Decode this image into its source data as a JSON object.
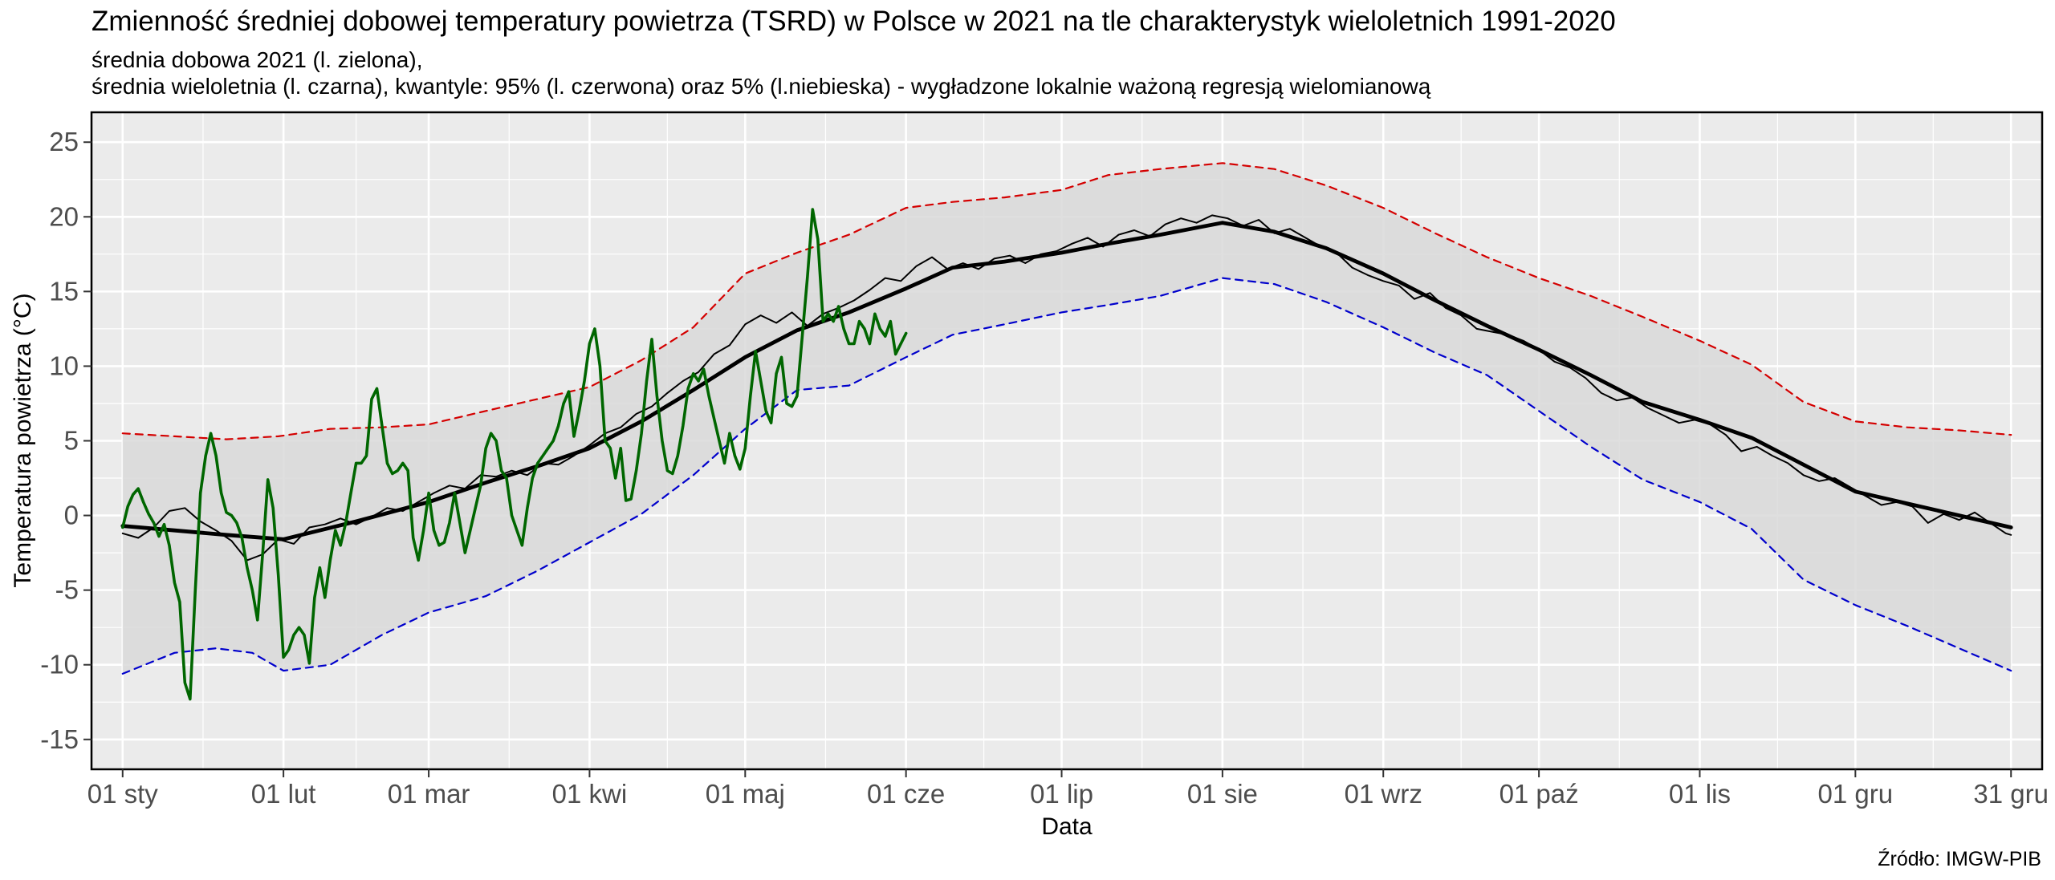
{
  "chart_data": {
    "type": "line",
    "title": "Zmienność średniej dobowej temperatury powietrza (TSRD) w Polsce w 2021 na tle charakterystyk wieloletnich 1991-2020",
    "subtitle_lines": [
      "średnia dobowa 2021 (l. zielona),",
      "średnia wieloletnia (l. czarna), kwantyle: 95% (l. czerwona) oraz 5% (l.niebieska) - wygładzone lokalnie ważoną regresją wielomianową"
    ],
    "xlabel": "Data",
    "ylabel": "Temperatura powietrza (°C)",
    "caption": "Źródło: IMGW-PIB",
    "ylim": [
      -17,
      27
    ],
    "y_ticks": [
      -15,
      -10,
      -5,
      0,
      5,
      10,
      15,
      20,
      25
    ],
    "y_tick_labels": [
      "-15",
      "-10",
      "-5",
      "0",
      "5",
      "10",
      "15",
      "20",
      "25"
    ],
    "xlim": [
      -6,
      370
    ],
    "x_tick_days": [
      0,
      31,
      59,
      90,
      120,
      151,
      181,
      212,
      243,
      273,
      304,
      334,
      364
    ],
    "x_tick_labels": [
      "01 sty",
      "01 lut",
      "01 mar",
      "01 kwi",
      "01 maj",
      "01 cze",
      "01 lip",
      "01 sie",
      "01 wrz",
      "01 paź",
      "01 lis",
      "01 gru",
      "31 gru"
    ],
    "grid": true,
    "legend": "none",
    "band": {
      "lower": "q05_smoothed",
      "upper": "q95_smoothed",
      "color": "#d9d9d9"
    },
    "series": [
      {
        "key": "q95_smoothed",
        "color": "#d40000",
        "style": "dashed",
        "x": [
          0,
          10,
          20,
          30,
          40,
          50,
          59,
          70,
          80,
          90,
          100,
          110,
          120,
          130,
          140,
          151,
          160,
          170,
          181,
          190,
          200,
          212,
          222,
          232,
          243,
          253,
          263,
          273,
          283,
          293,
          304,
          314,
          324,
          334,
          344,
          354,
          364
        ],
        "y": [
          5.5,
          5.3,
          5.1,
          5.3,
          5.8,
          5.9,
          6.1,
          7.0,
          7.8,
          8.6,
          10.4,
          12.6,
          16.2,
          17.6,
          18.8,
          20.6,
          21.0,
          21.3,
          21.8,
          22.8,
          23.2,
          23.6,
          23.2,
          22.1,
          20.6,
          18.9,
          17.3,
          15.9,
          14.7,
          13.3,
          11.7,
          10.1,
          7.6,
          6.3,
          5.9,
          5.7,
          5.4
        ]
      },
      {
        "key": "mean_smoothed",
        "color": "#000000",
        "style": "solid-thick",
        "x": [
          0,
          10,
          20,
          31,
          45,
          59,
          70,
          80,
          90,
          100,
          110,
          120,
          130,
          140,
          151,
          160,
          170,
          181,
          190,
          200,
          212,
          222,
          232,
          243,
          253,
          263,
          273,
          283,
          293,
          304,
          314,
          324,
          334,
          344,
          354,
          364
        ],
        "y": [
          -0.7,
          -1.0,
          -1.3,
          -1.6,
          -0.4,
          0.9,
          2.2,
          3.3,
          4.5,
          6.3,
          8.4,
          10.6,
          12.4,
          13.6,
          15.2,
          16.6,
          17.0,
          17.6,
          18.2,
          18.8,
          19.6,
          19.0,
          17.9,
          16.2,
          14.4,
          12.7,
          11.1,
          9.4,
          7.6,
          6.4,
          5.2,
          3.4,
          1.6,
          0.8,
          0.0,
          -0.8
        ]
      },
      {
        "key": "q05_smoothed",
        "color": "#0000cc",
        "style": "dashed",
        "x": [
          0,
          10,
          18,
          25,
          31,
          40,
          50,
          59,
          70,
          80,
          90,
          100,
          110,
          120,
          130,
          140,
          151,
          160,
          170,
          181,
          190,
          200,
          212,
          222,
          232,
          243,
          253,
          263,
          273,
          283,
          293,
          304,
          314,
          324,
          334,
          344,
          354,
          364
        ],
        "y": [
          -10.6,
          -9.2,
          -8.9,
          -9.2,
          -10.4,
          -10.0,
          -8.0,
          -6.5,
          -5.4,
          -3.7,
          -1.8,
          0.1,
          2.7,
          5.8,
          8.4,
          8.7,
          10.6,
          12.1,
          12.8,
          13.6,
          14.1,
          14.7,
          15.9,
          15.5,
          14.3,
          12.6,
          10.9,
          9.4,
          7.0,
          4.6,
          2.4,
          0.9,
          -0.9,
          -4.3,
          -6.0,
          -7.4,
          -8.9,
          -10.4
        ]
      },
      {
        "key": "mean_daily",
        "color": "#000000",
        "style": "solid-thin",
        "x": [
          0,
          3,
          6,
          9,
          12,
          15,
          18,
          21,
          24,
          27,
          30,
          33,
          36,
          39,
          42,
          45,
          48,
          51,
          54,
          57,
          60,
          63,
          66,
          69,
          72,
          75,
          78,
          81,
          84,
          87,
          90,
          93,
          96,
          99,
          102,
          105,
          108,
          111,
          114,
          117,
          120,
          123,
          126,
          129,
          132,
          135,
          138,
          141,
          144,
          147,
          150,
          153,
          156,
          159,
          162,
          165,
          168,
          171,
          174,
          177,
          180,
          183,
          186,
          189,
          192,
          195,
          198,
          201,
          204,
          207,
          210,
          213,
          216,
          219,
          222,
          225,
          228,
          231,
          234,
          237,
          240,
          243,
          246,
          249,
          252,
          255,
          258,
          261,
          264,
          267,
          270,
          273,
          276,
          279,
          282,
          285,
          288,
          291,
          294,
          297,
          300,
          303,
          306,
          309,
          312,
          315,
          318,
          321,
          324,
          327,
          330,
          333,
          336,
          339,
          342,
          345,
          348,
          351,
          354,
          357,
          360,
          363,
          364
        ],
        "y": [
          -1.2,
          -1.5,
          -0.8,
          0.3,
          0.5,
          -0.4,
          -1.0,
          -1.7,
          -3.0,
          -2.6,
          -1.6,
          -1.9,
          -0.8,
          -0.6,
          -0.2,
          -0.6,
          -0.1,
          0.5,
          0.3,
          0.9,
          1.5,
          2.0,
          1.8,
          2.7,
          2.6,
          3.0,
          2.7,
          3.5,
          3.4,
          4.0,
          4.7,
          5.5,
          5.9,
          6.8,
          7.3,
          8.2,
          9.0,
          9.6,
          10.8,
          11.4,
          12.8,
          13.4,
          12.9,
          13.6,
          12.7,
          13.5,
          13.9,
          14.4,
          15.1,
          15.9,
          15.7,
          16.7,
          17.3,
          16.5,
          16.9,
          16.5,
          17.2,
          17.4,
          16.9,
          17.5,
          17.7,
          18.2,
          18.6,
          18.0,
          18.8,
          19.1,
          18.7,
          19.5,
          19.9,
          19.6,
          20.1,
          19.9,
          19.4,
          19.8,
          18.9,
          19.2,
          18.6,
          18.0,
          17.6,
          16.6,
          16.1,
          15.7,
          15.4,
          14.5,
          14.9,
          13.9,
          13.4,
          12.5,
          12.3,
          12.1,
          11.7,
          11.1,
          10.3,
          9.9,
          9.2,
          8.2,
          7.7,
          7.9,
          7.2,
          6.7,
          6.2,
          6.4,
          6.1,
          5.4,
          4.3,
          4.6,
          4.0,
          3.5,
          2.7,
          2.3,
          2.5,
          1.9,
          1.3,
          0.7,
          0.9,
          0.6,
          -0.5,
          0.1,
          -0.3,
          0.2,
          -0.5,
          -1.2,
          -1.3
        ]
      },
      {
        "key": "daily_2021",
        "color": "#006600",
        "style": "solid",
        "x": [
          0,
          1,
          2,
          3,
          4,
          5,
          6,
          7,
          8,
          9,
          10,
          11,
          12,
          13,
          14,
          15,
          16,
          17,
          18,
          19,
          20,
          21,
          22,
          23,
          24,
          25,
          26,
          27,
          28,
          29,
          30,
          31,
          32,
          33,
          34,
          35,
          36,
          37,
          38,
          39,
          40,
          41,
          42,
          43,
          44,
          45,
          46,
          47,
          48,
          49,
          50,
          51,
          52,
          53,
          54,
          55,
          56,
          57,
          58,
          59,
          60,
          61,
          62,
          63,
          64,
          65,
          66,
          67,
          68,
          69,
          70,
          71,
          72,
          73,
          74,
          75,
          76,
          77,
          78,
          79,
          80,
          81,
          82,
          83,
          84,
          85,
          86,
          87,
          88,
          89,
          90,
          91,
          92,
          93,
          94,
          95,
          96,
          97,
          98,
          99,
          100,
          101,
          102,
          103,
          104,
          105,
          106,
          107,
          108,
          109,
          110,
          111,
          112,
          113,
          114,
          115,
          116,
          117,
          118,
          119,
          120,
          121,
          122,
          123,
          124,
          125,
          126,
          127,
          128,
          129,
          130,
          131,
          132,
          133,
          134,
          135,
          136,
          137,
          138,
          139,
          140,
          141,
          142,
          143,
          144,
          145,
          146,
          147,
          148,
          149,
          150,
          151
        ],
        "y": [
          -0.8,
          0.6,
          1.4,
          1.8,
          0.9,
          0.1,
          -0.5,
          -1.4,
          -0.6,
          -2.0,
          -4.5,
          -5.8,
          -11.2,
          -12.3,
          -5.0,
          1.5,
          4.0,
          5.5,
          4.0,
          1.5,
          0.2,
          0.0,
          -0.5,
          -1.5,
          -3.5,
          -5.0,
          -7.0,
          -2.5,
          2.4,
          0.5,
          -4.0,
          -9.5,
          -9.0,
          -8.0,
          -7.5,
          -8.0,
          -9.9,
          -5.5,
          -3.5,
          -5.5,
          -3.0,
          -1.0,
          -2.0,
          -0.5,
          1.5,
          3.5,
          3.5,
          4.0,
          7.8,
          8.5,
          6.0,
          3.5,
          2.8,
          3.0,
          3.5,
          3.0,
          -1.5,
          -3.0,
          -1.0,
          1.5,
          -1.0,
          -2.0,
          -1.8,
          -0.5,
          1.5,
          -0.5,
          -2.5,
          -1.0,
          0.5,
          2.0,
          4.5,
          5.5,
          5.0,
          3.0,
          2.5,
          0.0,
          -1.0,
          -2.0,
          0.5,
          2.5,
          3.5,
          4.0,
          4.5,
          5.0,
          6.0,
          7.5,
          8.3,
          5.3,
          7.0,
          9.0,
          11.5,
          12.5,
          10.0,
          5.0,
          4.5,
          2.5,
          4.5,
          1.0,
          1.1,
          3.0,
          5.5,
          9.0,
          11.8,
          8.0,
          5.0,
          3.0,
          2.8,
          4.0,
          6.0,
          8.5,
          9.5,
          9.0,
          9.8,
          8.0,
          6.5,
          5.0,
          3.5,
          5.5,
          4.0,
          3.1,
          4.5,
          8.0,
          11.0,
          9.0,
          7.0,
          6.2,
          9.5,
          10.6,
          7.5,
          7.3,
          8.0,
          12.0,
          16.0,
          20.5,
          18.5,
          13.0,
          13.5,
          13.0,
          14.0,
          12.5,
          11.5,
          11.5,
          13.0,
          12.5,
          11.5,
          13.5,
          12.5,
          12.0,
          13.0,
          10.8,
          11.5,
          12.2
        ]
      }
    ]
  }
}
